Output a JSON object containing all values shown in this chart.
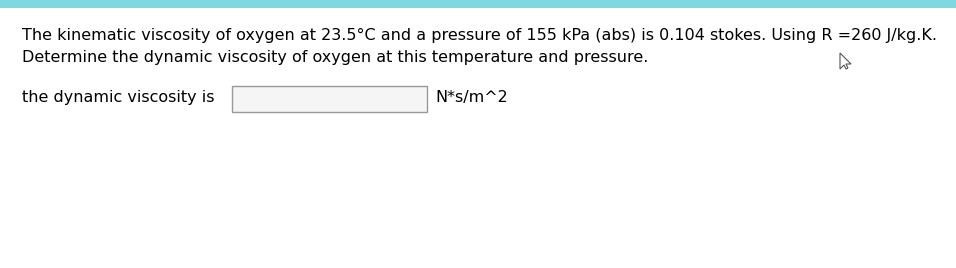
{
  "line1": "The kinematic viscosity of oxygen at 23.5°C and a pressure of 155 kPa (abs) is 0.104 stokes. Using R =260 J/kg.K.",
  "line2": "Determine the dynamic viscosity of oxygen at this temperature and pressure.",
  "label_text": "the dynamic viscosity is",
  "unit_text": "N*s/m^2",
  "bg_color": "#ffffff",
  "top_bar_color": "#7dd8e0",
  "text_color": "#000000",
  "font_size": 11.5,
  "fig_width": 9.56,
  "fig_height": 2.68,
  "fig_dpi": 100
}
